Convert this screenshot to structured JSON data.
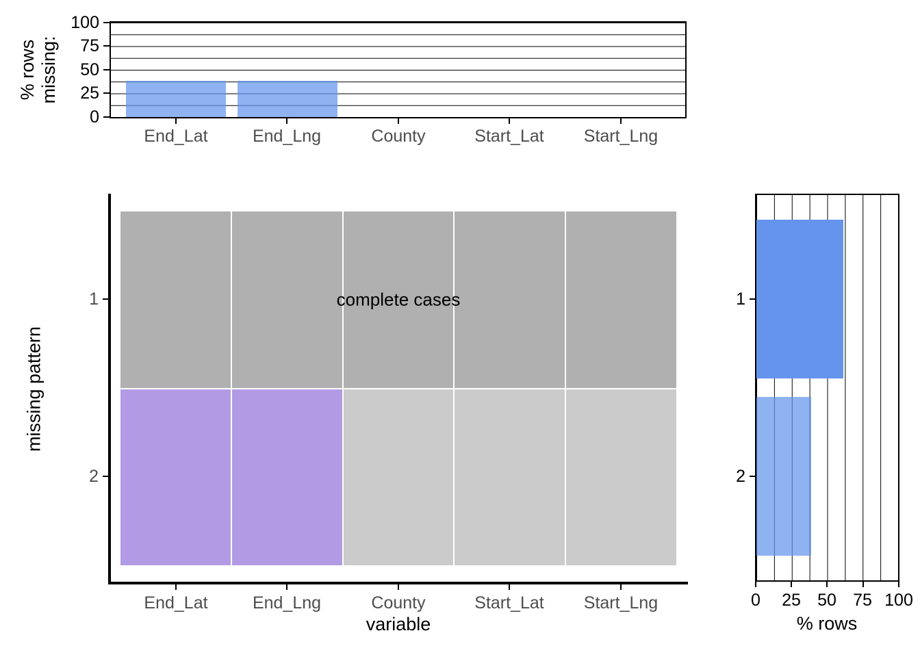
{
  "colors": {
    "bar_light_blue": "#93B3EE",
    "bar_solid_blue": "#6494EB",
    "tile_missing_purple": "#B29BE4",
    "tile_observed_dark_gray": "#B0B0B0",
    "tile_observed_light_gray": "#CBCBCB",
    "grid_line": "#000000",
    "axis_text_gray": "#4D4D4D",
    "axis_text_black": "#000000"
  },
  "chart_data": [
    {
      "type": "bar",
      "id": "top-percent-missing-by-variable",
      "orientation": "vertical",
      "ylabel": "% rows missing:",
      "ylabel_lines": [
        "% rows",
        "missing:"
      ],
      "categories": [
        "End_Lat",
        "End_Lng",
        "County",
        "Start_Lat",
        "Start_Lng"
      ],
      "values": [
        38.6,
        38.6,
        0,
        0,
        0
      ],
      "ylim": [
        0,
        100
      ],
      "yticks": [
        "100",
        "75",
        "50",
        "25",
        "0"
      ],
      "grid": "horizontal black lines every 12.5",
      "bar_color": "#93B3EE"
    },
    {
      "type": "heatmap",
      "id": "missing-pattern-grid",
      "xlabel": "variable",
      "ylabel": "missing pattern",
      "categories": [
        "End_Lat",
        "End_Lng",
        "County",
        "Start_Lat",
        "Start_Lng"
      ],
      "pattern_labels": [
        "1",
        "2"
      ],
      "rows": [
        {
          "pattern": "1",
          "annotation": "complete cases",
          "cells": [
            "observed",
            "observed",
            "observed",
            "observed",
            "observed"
          ]
        },
        {
          "pattern": "2",
          "annotation": "",
          "cells": [
            "missing",
            "missing",
            "observed",
            "observed",
            "observed"
          ]
        }
      ]
    },
    {
      "type": "bar",
      "id": "right-percent-rows-by-pattern",
      "orientation": "horizontal",
      "xlabel": "% rows",
      "categories": [
        "1",
        "2"
      ],
      "values": [
        61.4,
        38.6
      ],
      "xlim": [
        0,
        100
      ],
      "xticks": [
        "0",
        "25",
        "50",
        "75",
        "100"
      ],
      "grid": "vertical black lines every 12.5",
      "bar_colors": [
        "#6494EB",
        "#93B3EE"
      ]
    }
  ]
}
